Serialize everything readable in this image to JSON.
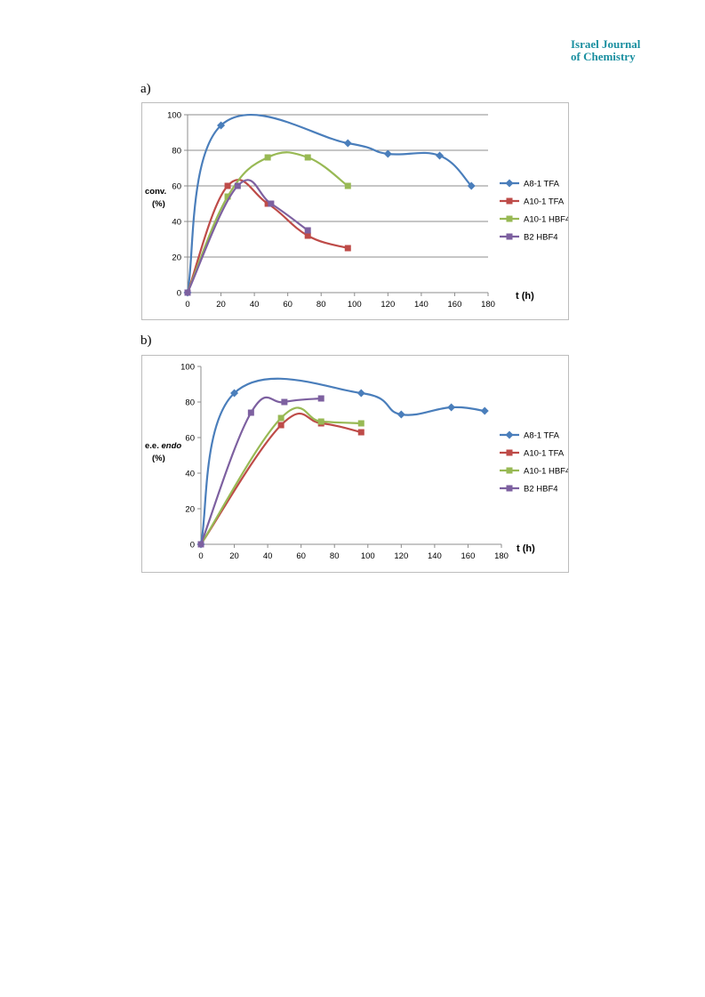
{
  "header": {
    "journal_line1": "Israel Journal",
    "journal_line2": "of Chemistry"
  },
  "panels": {
    "a_label": "a)",
    "b_label": "b)"
  },
  "colors": {
    "A8-1 TFA": "#4a7ebb",
    "A10-1 TFA": "#be4b48",
    "A10-1 HBF4": "#98b954",
    "B2 HBF4": "#7d60a0"
  },
  "chart_data": [
    {
      "type": "line",
      "ylabel_line1": "conv.",
      "ylabel_line2": "(%)",
      "xlabel": "t (h)",
      "xlim": [
        0,
        180
      ],
      "ylim": [
        0,
        100
      ],
      "xticks": [
        0,
        20,
        40,
        60,
        80,
        100,
        120,
        140,
        160,
        180
      ],
      "yticks": [
        0,
        20,
        40,
        60,
        80,
        100
      ],
      "grid": "horizontal",
      "legend": "right",
      "series": [
        {
          "name": "A8-1 TFA",
          "marker": "diamond",
          "points": [
            [
              0,
              0
            ],
            [
              20,
              94
            ],
            [
              96,
              84
            ],
            [
              120,
              78
            ],
            [
              151,
              77
            ],
            [
              170,
              60
            ]
          ]
        },
        {
          "name": "A10-1 TFA",
          "marker": "square",
          "points": [
            [
              0,
              0
            ],
            [
              24,
              60
            ],
            [
              48,
              50
            ],
            [
              72,
              32
            ],
            [
              96,
              25
            ]
          ]
        },
        {
          "name": "A10-1 HBF4",
          "marker": "square",
          "points": [
            [
              0,
              0
            ],
            [
              24,
              54
            ],
            [
              48,
              76
            ],
            [
              72,
              76
            ],
            [
              96,
              60
            ]
          ]
        },
        {
          "name": "B2 HBF4",
          "marker": "square",
          "points": [
            [
              0,
              0
            ],
            [
              30,
              60
            ],
            [
              50,
              50
            ],
            [
              72,
              35
            ]
          ]
        }
      ]
    },
    {
      "type": "line",
      "ylabel_line1": "e.e.",
      "ylabel_italic": "endo",
      "ylabel_line2": "(%)",
      "xlabel": "t (h)",
      "xlim": [
        0,
        180
      ],
      "ylim": [
        0,
        100
      ],
      "xticks": [
        0,
        20,
        40,
        60,
        80,
        100,
        120,
        140,
        160,
        180
      ],
      "yticks": [
        0,
        20,
        40,
        60,
        80,
        100
      ],
      "grid": "none",
      "legend": "right",
      "series": [
        {
          "name": "A8-1 TFA",
          "marker": "diamond",
          "points": [
            [
              0,
              0
            ],
            [
              20,
              85
            ],
            [
              96,
              85
            ],
            [
              120,
              73
            ],
            [
              150,
              77
            ],
            [
              170,
              75
            ]
          ]
        },
        {
          "name": "A10-1 TFA",
          "marker": "square",
          "points": [
            [
              0,
              0
            ],
            [
              48,
              67
            ],
            [
              72,
              68
            ],
            [
              96,
              63
            ]
          ]
        },
        {
          "name": "A10-1 HBF4",
          "marker": "square",
          "points": [
            [
              0,
              0
            ],
            [
              48,
              71
            ],
            [
              72,
              69
            ],
            [
              96,
              68
            ]
          ]
        },
        {
          "name": "B2 HBF4",
          "marker": "square",
          "points": [
            [
              0,
              0
            ],
            [
              30,
              74
            ],
            [
              50,
              80
            ],
            [
              72,
              82
            ]
          ]
        }
      ]
    }
  ]
}
